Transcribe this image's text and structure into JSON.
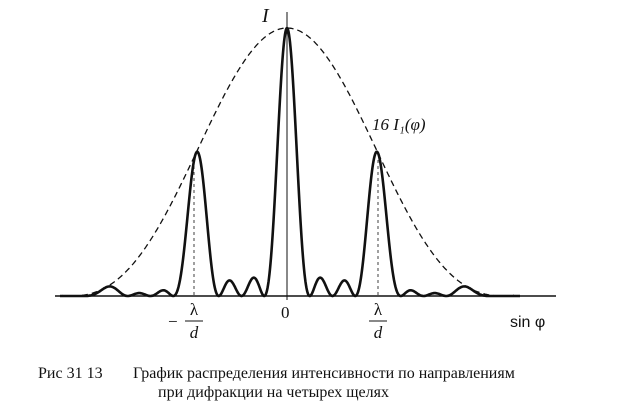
{
  "axis": {
    "y_label": "I",
    "x_label": "sin φ",
    "origin": "0"
  },
  "ticks": {
    "minus": "−",
    "lambda": "λ",
    "d": "d"
  },
  "envelope_label": "16 I₁(φ)",
  "caption": {
    "number": "Рис  31 13",
    "line1": "График распределения интенсивности по направлениям",
    "line2": "при дифракции на четырех щелях"
  }
}
